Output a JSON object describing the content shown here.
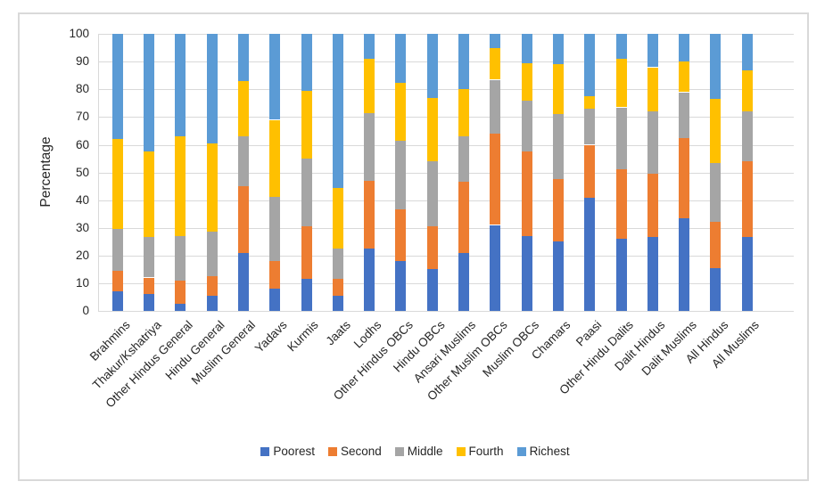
{
  "chart_data": {
    "type": "bar",
    "stacked": true,
    "title": "",
    "ylabel": "Percentage",
    "ylim": [
      0,
      100
    ],
    "ytick_interval": 10,
    "yticks": [
      "0",
      "10",
      "20",
      "30",
      "40",
      "50",
      "60",
      "70",
      "80",
      "90",
      "100"
    ],
    "grid": true,
    "legend_position": "bottom",
    "categories": [
      "Brahmins",
      "Thakur/Kshatriya",
      "Other Hindus General",
      "Hindu General",
      "Muslim General",
      "Yadavs",
      "Kurmis",
      "Jaats",
      "Lodhs",
      "Other Hindus OBCs",
      "Hindu OBCs",
      "Ansari Muslims",
      "Other Muslim OBCs",
      "Muslim OBCs",
      "Chamars",
      "Paasi",
      "Other Hindu Dalits",
      "Dalit Hindus",
      "Dalit Muslims",
      "All Hindus",
      "All Muslims"
    ],
    "series": [
      {
        "name": "Poorest",
        "color": "#4472C4",
        "values": [
          7,
          6,
          2.5,
          5.5,
          21,
          8,
          11.5,
          5.5,
          22.5,
          18,
          15,
          21,
          31,
          27,
          25,
          41,
          26,
          26.5,
          33.5,
          15.5,
          26.5
        ]
      },
      {
        "name": "Second",
        "color": "#ED7D31",
        "values": [
          7.5,
          6,
          8.5,
          7,
          24,
          10,
          19,
          6,
          24.5,
          18.5,
          15.5,
          25.5,
          33,
          30.5,
          22.5,
          19,
          25,
          23,
          29,
          16.5,
          27.5
        ]
      },
      {
        "name": "Middle",
        "color": "#A5A5A5",
        "values": [
          15,
          14.5,
          16,
          16,
          18,
          23,
          24.5,
          11,
          24.5,
          25,
          23.5,
          16.5,
          19.5,
          18.5,
          23.5,
          13,
          22.5,
          22.5,
          16.5,
          21.5,
          18
        ]
      },
      {
        "name": "Fourth",
        "color": "#FFC000",
        "values": [
          32.5,
          31,
          36,
          32,
          20,
          28,
          24.5,
          22,
          19.5,
          21,
          23,
          17,
          11.5,
          13.5,
          18,
          4.5,
          17.5,
          16,
          11,
          23,
          15
        ]
      },
      {
        "name": "Richest",
        "color": "#5B9BD5",
        "values": [
          38,
          42.5,
          37,
          39.5,
          17,
          31,
          20.5,
          55.5,
          9,
          17.5,
          23,
          20,
          5,
          10.5,
          11,
          22.5,
          9,
          12,
          10,
          23.5,
          13
        ]
      }
    ]
  },
  "colors": {
    "gridline": "#D9D9D9",
    "axis_line": "#D9D9D9",
    "chart_border": "#D9D9D9",
    "text": "#262626",
    "background": "#FFFFFF"
  }
}
